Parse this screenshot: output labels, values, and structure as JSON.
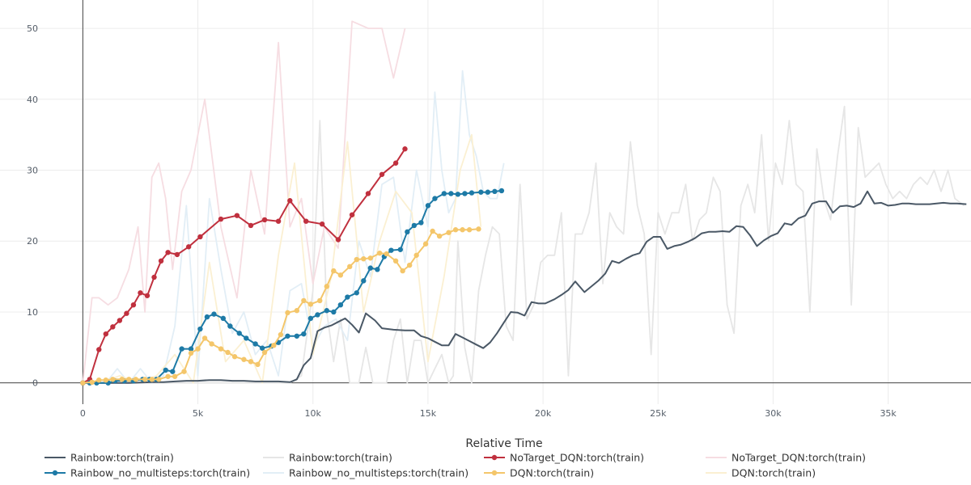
{
  "chart_data": {
    "type": "line",
    "title": "",
    "xlabel": "Relative Time",
    "ylabel": "",
    "xlim": [
      -3600,
      38600
    ],
    "ylim": [
      -3,
      54
    ],
    "x_ticks": [
      0,
      5000,
      10000,
      15000,
      20000,
      25000,
      30000,
      35000
    ],
    "x_tick_labels": [
      "0",
      "5k",
      "10k",
      "15k",
      "20k",
      "25k",
      "30k",
      "35k"
    ],
    "y_ticks": [
      0,
      10,
      20,
      30,
      40,
      50
    ],
    "y_tick_labels": [
      "0",
      "10",
      "20",
      "30",
      "40",
      "50"
    ],
    "grid": true,
    "legend_position": "bottom",
    "series": [
      {
        "name": "Rainbow:torch(train)",
        "color": "#e6e6e6",
        "markers": false,
        "raw": true,
        "x": [
          0,
          1000,
          2000,
          3000,
          4000,
          5000,
          6000,
          7000,
          8000,
          9000,
          9500,
          10000,
          10300,
          10600,
          10900,
          11200,
          11600,
          11800,
          12000,
          12300,
          12600,
          12900,
          13200,
          13500,
          13800,
          14100,
          14400,
          14700,
          15000,
          15300,
          15600,
          15900,
          16100,
          16300,
          16600,
          16900,
          17200,
          17500,
          17800,
          18100,
          18400,
          18700,
          19000,
          19300,
          19600,
          19900,
          20200,
          20500,
          20800,
          21100,
          21400,
          21700,
          22000,
          22300,
          22600,
          22900,
          23200,
          23500,
          23800,
          24100,
          24400,
          24700,
          25000,
          25300,
          25600,
          25900,
          26200,
          26500,
          26800,
          27100,
          27400,
          27700,
          28000,
          28300,
          28600,
          28900,
          29200,
          29500,
          29800,
          30100,
          30400,
          30700,
          31000,
          31300,
          31600,
          31900,
          32200,
          32500,
          32800,
          33100,
          33400,
          33700,
          34000,
          34300,
          34600,
          34900,
          35200,
          35500,
          35800,
          36100,
          36400,
          36700,
          37000,
          37300,
          37600,
          37900,
          38300
        ],
        "y": [
          0,
          0,
          0,
          0,
          0,
          0,
          0,
          0,
          0,
          0,
          1,
          13,
          37,
          10,
          3,
          9,
          0,
          0,
          0,
          5,
          0,
          0,
          0,
          6,
          9,
          0,
          6,
          6,
          0,
          2,
          4,
          0,
          1,
          20,
          5,
          0,
          13,
          18,
          22,
          21,
          8,
          6,
          28,
          9,
          11,
          17,
          18,
          18,
          24,
          1,
          21,
          21,
          24,
          31,
          14,
          24,
          22,
          21,
          34,
          25,
          21,
          4,
          24,
          21,
          24,
          24,
          28,
          20,
          23,
          24,
          29,
          27,
          11,
          7,
          25,
          28,
          24,
          35,
          20,
          31,
          28,
          37,
          28,
          27,
          10,
          33,
          26,
          23,
          32,
          39,
          11,
          36,
          29,
          30,
          31,
          28,
          26,
          27,
          26,
          28,
          29,
          28,
          30,
          27,
          30,
          26,
          25
        ]
      },
      {
        "name": "Rainbow_no_multisteps:torch(train)",
        "color": "#e2eef6",
        "markers": false,
        "raw": true,
        "x": [
          0,
          1000,
          1500,
          2000,
          2500,
          3000,
          3500,
          4000,
          4500,
          5000,
          5500,
          6000,
          6500,
          7000,
          7500,
          8000,
          8500,
          9000,
          9500,
          10000,
          10500,
          11000,
          11500,
          12000,
          12500,
          13000,
          13500,
          14000,
          14500,
          15000,
          15300,
          15600,
          15900,
          16200,
          16500,
          16800,
          17100,
          17400,
          17700,
          18000,
          18300
        ],
        "y": [
          0,
          0,
          2,
          0,
          2,
          0,
          1,
          8,
          25,
          1,
          26,
          16,
          7,
          10,
          4,
          6,
          1,
          13,
          14,
          5,
          8,
          9,
          6,
          20,
          15,
          28,
          29,
          17,
          30,
          22,
          41,
          30,
          24,
          26,
          44,
          35,
          32,
          27,
          26,
          26,
          31
        ]
      },
      {
        "name": "NoTarget_DQN:torch(train)",
        "color": "#f6dde2",
        "markers": false,
        "raw": true,
        "x": [
          0,
          400,
          700,
          1100,
          1500,
          2000,
          2400,
          2700,
          3000,
          3300,
          3600,
          3900,
          4300,
          4700,
          5300,
          6000,
          6700,
          7300,
          7900,
          8500,
          9000,
          9500,
          10000,
          10500,
          11100,
          11700,
          12400,
          13000,
          13500,
          14000
        ],
        "y": [
          0,
          12,
          12,
          11,
          12,
          16,
          22,
          10,
          29,
          31,
          26,
          16,
          27,
          30,
          40,
          22,
          12,
          30,
          21,
          48,
          22,
          26,
          14,
          22,
          19,
          51,
          50,
          50,
          43,
          50
        ]
      },
      {
        "name": "DQN:torch(train)",
        "color": "#fbf0d2",
        "markers": false,
        "raw": true,
        "x": [
          0,
          800,
          1600,
          2400,
          3200,
          4000,
          4800,
          5500,
          6200,
          7000,
          7800,
          8500,
          9200,
          10000,
          10800,
          11500,
          12200,
          12900,
          13600,
          14300,
          15000,
          15700,
          16400,
          16900,
          17300
        ],
        "y": [
          0,
          0,
          1,
          0,
          1,
          4,
          0,
          17,
          3,
          6,
          0,
          18,
          31,
          4,
          15,
          34,
          10,
          20,
          27,
          24,
          3,
          15,
          30,
          35,
          22
        ]
      },
      {
        "name": "Rainbow:torch(train)",
        "color": "#4a5866",
        "markers": false,
        "raw": false,
        "x": [
          0,
          1000,
          2000,
          3000,
          3500,
          4000,
          4500,
          5000,
          5500,
          6000,
          6500,
          7000,
          7500,
          8000,
          8500,
          9000,
          9300,
          9600,
          9900,
          10200,
          10500,
          10800,
          11100,
          11400,
          11700,
          12000,
          12300,
          12700,
          13000,
          13500,
          14000,
          14400,
          14700,
          15000,
          15300,
          15600,
          15900,
          16200,
          16500,
          16800,
          17100,
          17400,
          17700,
          18000,
          18300,
          18600,
          18900,
          19200,
          19500,
          19800,
          20100,
          20500,
          20800,
          21100,
          21400,
          21800,
          22100,
          22400,
          22700,
          23000,
          23300,
          23600,
          23900,
          24200,
          24500,
          24800,
          25100,
          25400,
          25700,
          26000,
          26300,
          26600,
          26900,
          27200,
          27500,
          27800,
          28100,
          28400,
          28700,
          29000,
          29300,
          29600,
          29900,
          30200,
          30500,
          30800,
          31100,
          31400,
          31700,
          32000,
          32300,
          32600,
          32900,
          33200,
          33500,
          33800,
          34100,
          34400,
          34700,
          35000,
          35300,
          35600,
          35900,
          36200,
          36500,
          36800,
          37100,
          37400,
          37700,
          38000,
          38400
        ],
        "y": [
          0,
          0,
          0,
          0.1,
          0.1,
          0.2,
          0.3,
          0.3,
          0.4,
          0.4,
          0.3,
          0.3,
          0.2,
          0.2,
          0.2,
          0.1,
          0.5,
          2.5,
          3.5,
          7.3,
          7.8,
          8.1,
          8.6,
          9.1,
          8.2,
          7.1,
          9.8,
          8.8,
          7.7,
          7.5,
          7.4,
          7.4,
          6.6,
          6.3,
          5.8,
          5.3,
          5.3,
          6.9,
          6.4,
          5.9,
          5.4,
          4.9,
          5.7,
          7.0,
          8.5,
          10.0,
          9.9,
          9.5,
          11.4,
          11.2,
          11.2,
          11.8,
          12.4,
          13.1,
          14.3,
          12.8,
          13.6,
          14.4,
          15.4,
          17.2,
          16.9,
          17.5,
          18.0,
          18.3,
          19.9,
          20.6,
          20.6,
          18.9,
          19.3,
          19.5,
          19.9,
          20.4,
          21.1,
          21.3,
          21.3,
          21.4,
          21.3,
          22.1,
          22.0,
          20.8,
          19.3,
          20.1,
          20.7,
          21.1,
          22.5,
          22.3,
          23.2,
          23.6,
          25.3,
          25.6,
          25.6,
          24.0,
          24.9,
          25.0,
          24.8,
          25.3,
          27.0,
          25.3,
          25.4,
          25.0,
          25.1,
          25.3,
          25.3,
          25.2,
          25.2,
          25.2,
          25.3,
          25.4,
          25.3,
          25.3,
          25.2
        ]
      },
      {
        "name": "NoTarget_DQN:torch(train)",
        "color": "#c0303e",
        "markers": true,
        "raw": false,
        "x": [
          0,
          300,
          700,
          1000,
          1300,
          1600,
          1900,
          2200,
          2500,
          2800,
          3100,
          3400,
          3700,
          4100,
          4600,
          5100,
          6000,
          6700,
          7300,
          7900,
          8500,
          9000,
          9700,
          10400,
          11100,
          11700,
          12400,
          13000,
          13600,
          14000
        ],
        "y": [
          0,
          0.5,
          4.7,
          6.9,
          7.9,
          8.8,
          9.8,
          11.0,
          12.7,
          12.3,
          14.9,
          17.2,
          18.4,
          18.1,
          19.2,
          20.6,
          23.1,
          23.6,
          22.2,
          23.0,
          22.8,
          25.7,
          22.8,
          22.4,
          20.2,
          23.7,
          26.7,
          29.4,
          31.0,
          33.0
        ]
      },
      {
        "name": "Rainbow_no_multisteps:torch(train)",
        "color": "#1d7aa6",
        "markers": true,
        "raw": false,
        "x": [
          0,
          300,
          600,
          1100,
          1400,
          1800,
          2200,
          2600,
          2900,
          3200,
          3600,
          3900,
          4300,
          4700,
          5100,
          5400,
          5700,
          6100,
          6400,
          6800,
          7100,
          7500,
          7800,
          8200,
          8500,
          8900,
          9300,
          9600,
          9900,
          10200,
          10600,
          10900,
          11200,
          11500,
          11900,
          12200,
          12500,
          12800,
          13100,
          13400,
          13800,
          14100,
          14400,
          14700,
          15000,
          15300,
          15700,
          16000,
          16300,
          16600,
          16900,
          17300,
          17600,
          17900,
          18200
        ],
        "y": [
          0,
          0,
          0,
          0,
          0.3,
          0.3,
          0.3,
          0.5,
          0.5,
          0.5,
          1.8,
          1.6,
          4.8,
          4.8,
          7.6,
          9.3,
          9.7,
          9.1,
          8.0,
          7.0,
          6.3,
          5.5,
          4.9,
          5.2,
          5.7,
          6.6,
          6.6,
          6.9,
          9.1,
          9.6,
          10.2,
          10.0,
          11.0,
          12.1,
          12.7,
          14.4,
          16.2,
          16.0,
          17.8,
          18.7,
          18.8,
          21.3,
          22.2,
          22.6,
          25.0,
          26.0,
          26.7,
          26.7,
          26.6,
          26.7,
          26.8,
          26.9,
          26.9,
          27.0,
          27.1
        ]
      },
      {
        "name": "DQN:torch(train)",
        "color": "#f4c66a",
        "markers": true,
        "raw": false,
        "x": [
          0,
          400,
          700,
          1000,
          1300,
          1700,
          2000,
          2300,
          2700,
          3000,
          3300,
          3700,
          4000,
          4400,
          4700,
          5000,
          5300,
          5600,
          6000,
          6300,
          6600,
          7000,
          7300,
          7600,
          7900,
          8300,
          8600,
          8900,
          9300,
          9600,
          9900,
          10300,
          10600,
          10900,
          11200,
          11600,
          11900,
          12200,
          12500,
          12900,
          13200,
          13600,
          13900,
          14200,
          14500,
          14900,
          15200,
          15500,
          15900,
          16200,
          16500,
          16800,
          17200
        ],
        "y": [
          0,
          0.1,
          0.4,
          0.4,
          0.5,
          0.5,
          0.5,
          0.5,
          0.5,
          0.5,
          0.5,
          0.9,
          0.9,
          1.6,
          4.2,
          4.8,
          6.3,
          5.5,
          4.8,
          4.3,
          3.7,
          3.3,
          3.0,
          2.6,
          4.3,
          5.3,
          6.8,
          9.9,
          10.2,
          11.6,
          11.1,
          11.6,
          13.6,
          15.8,
          15.2,
          16.4,
          17.4,
          17.5,
          17.6,
          18.3,
          18.2,
          17.2,
          15.8,
          16.6,
          18.0,
          19.6,
          21.4,
          20.7,
          21.2,
          21.6,
          21.6,
          21.6,
          21.7
        ]
      }
    ]
  }
}
